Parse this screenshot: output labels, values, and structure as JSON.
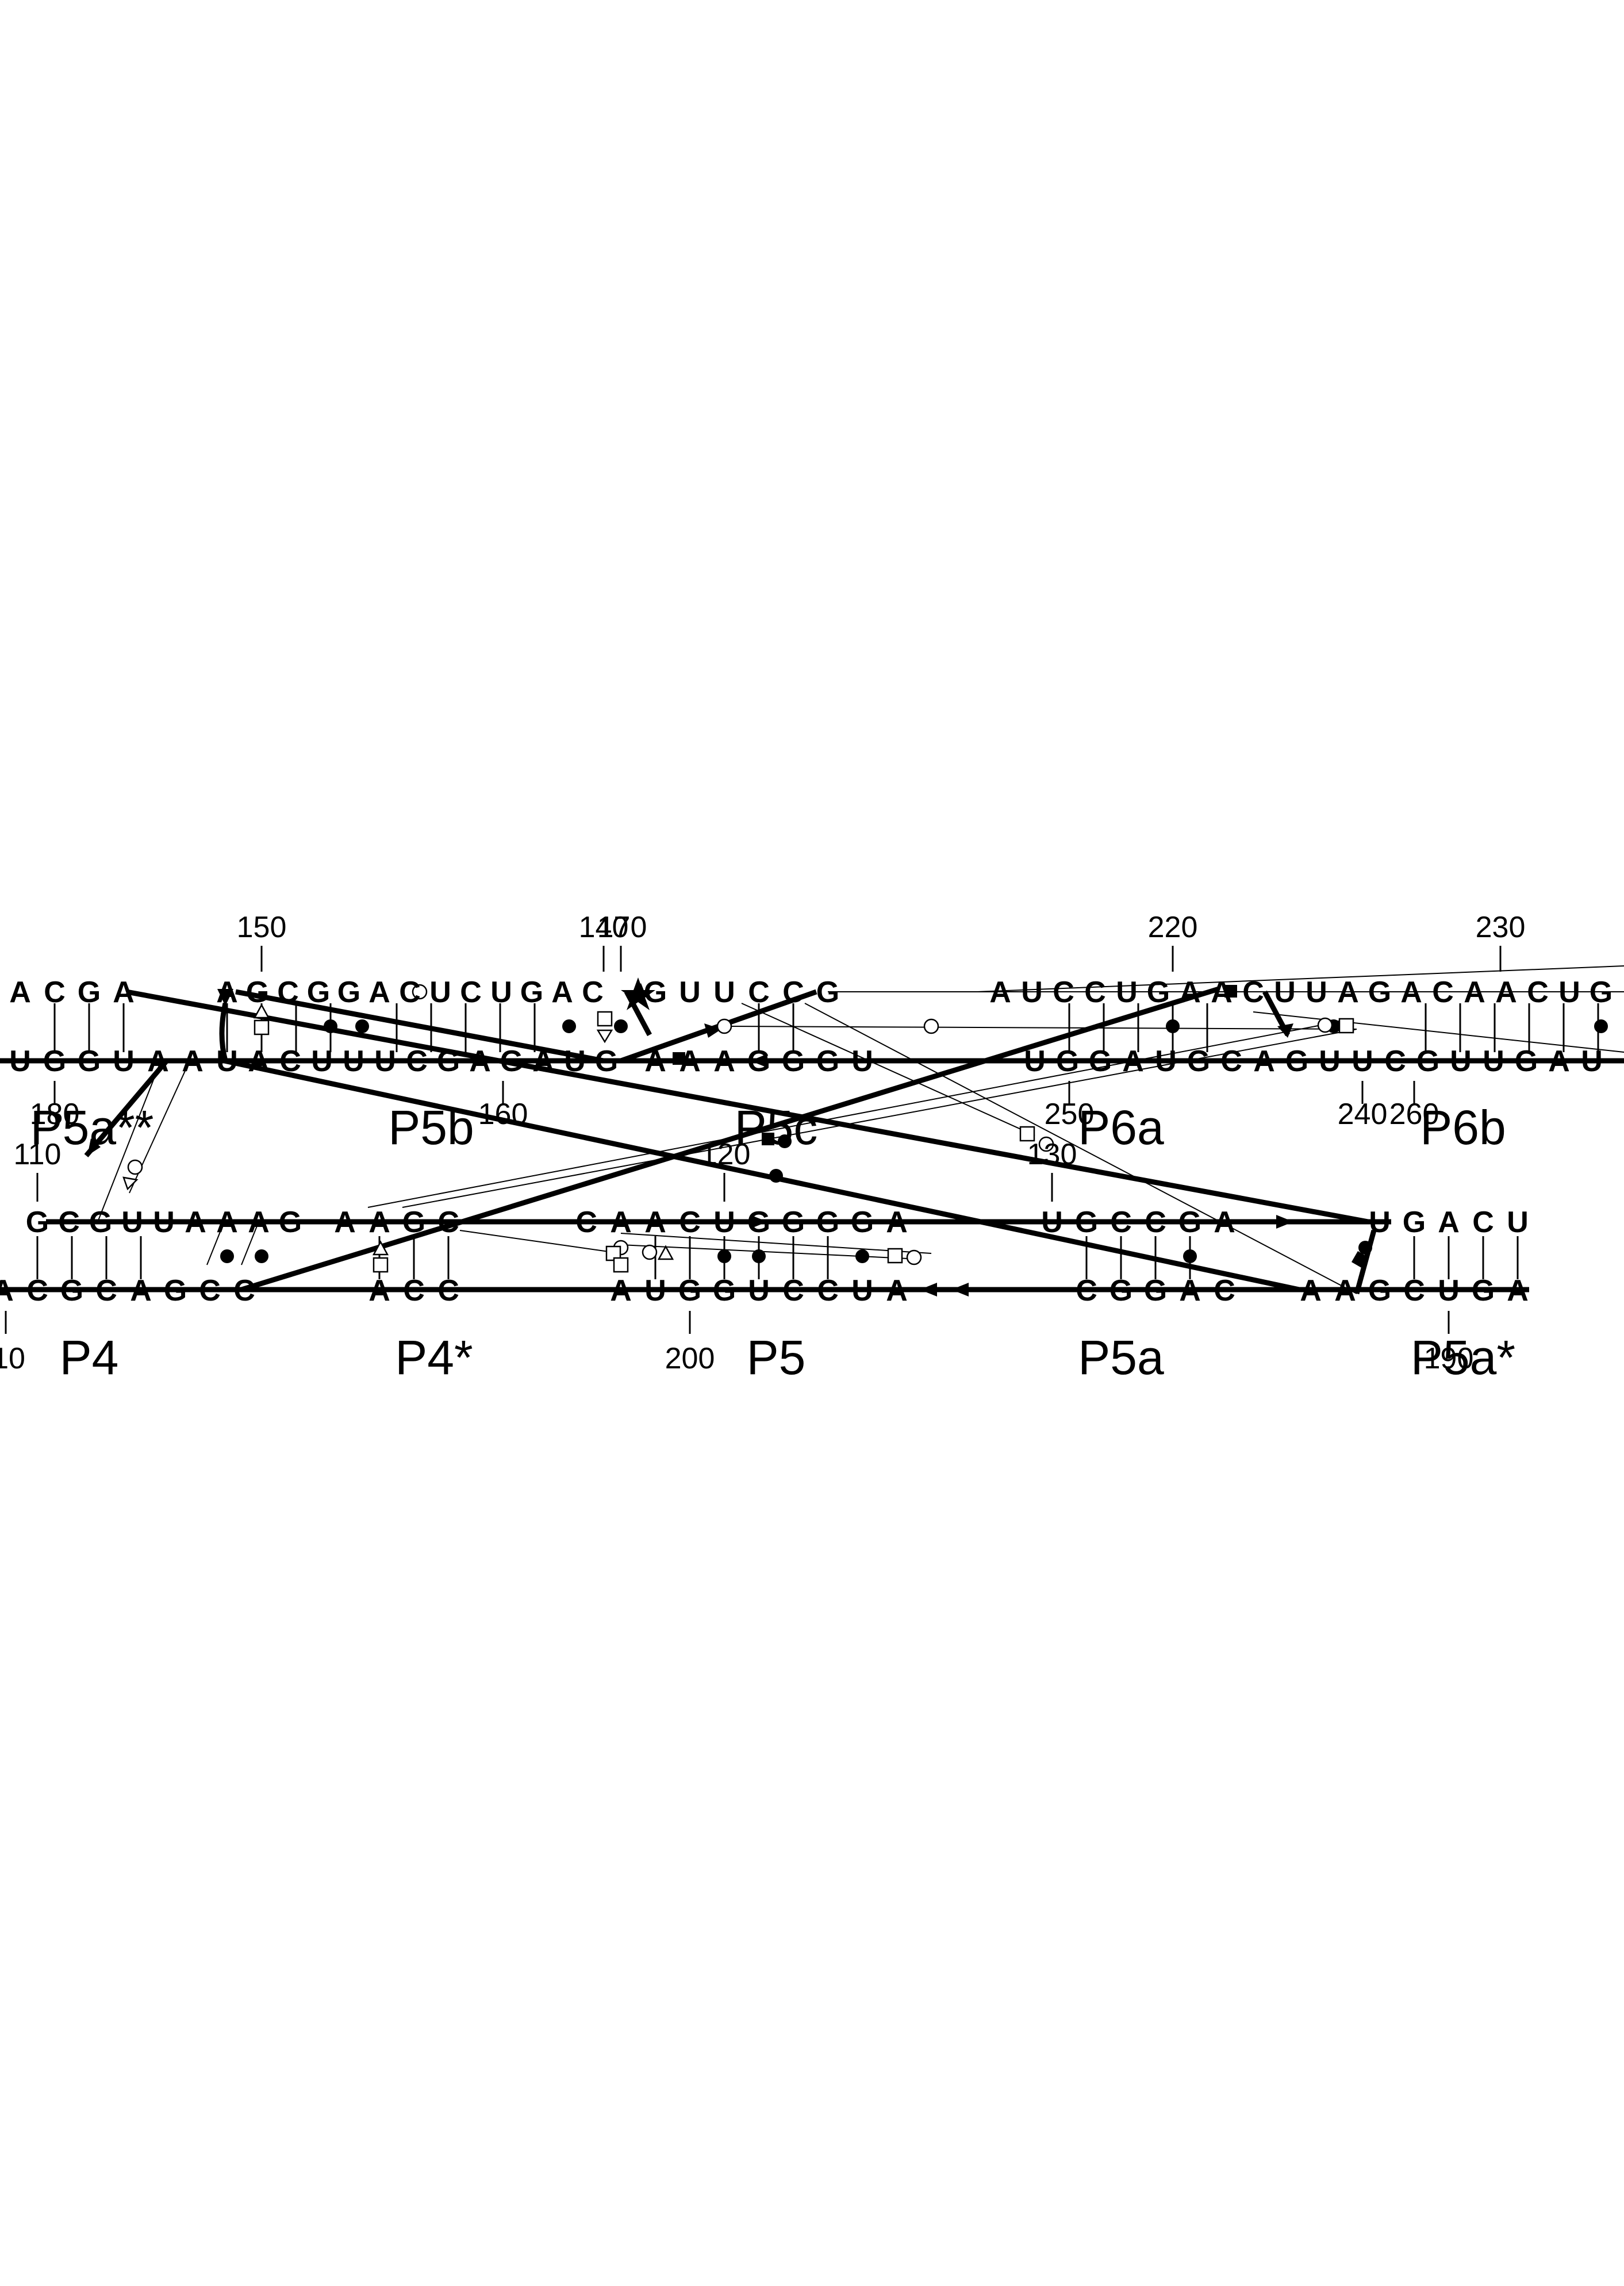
{
  "figure": {
    "kind": "RNA tertiary-interaction diagram (helix strands with base pairs)",
    "upper_block": {
      "strand_top": {
        "left_segment": "ACGA",
        "mid_segment": "AGCGGACUCUGAC",
        "right_segment": "GUUCCG",
        "p6_segment": "AUCCUGAACUUAGACAACUG"
      },
      "strand_bottom": {
        "left_segment": "UGGUAAU",
        "mid_segment": "ACUUUCGAGAUG",
        "right_segment": "AAAGGGU",
        "p6_segment": "UGGAUGCAGUUCGUUGAU"
      },
      "numbers": [
        {
          "id": "n150",
          "text": "150"
        },
        {
          "id": "n140",
          "text": "140"
        },
        {
          "id": "n170",
          "text": "170"
        },
        {
          "id": "n220",
          "text": "220"
        },
        {
          "id": "n230",
          "text": "230"
        },
        {
          "id": "n180",
          "text": "180"
        },
        {
          "id": "n160",
          "text": "160"
        },
        {
          "id": "n250",
          "text": "250"
        },
        {
          "id": "n240",
          "text": "240"
        },
        {
          "id": "n260",
          "text": "260"
        }
      ],
      "helix_labels": [
        "P5a**",
        "P5b",
        "P5c",
        "P6a",
        "P6b"
      ]
    },
    "lower_block": {
      "strand_top": {
        "left_segment": "GCGUUAAAG",
        "p4star_segment": "AAGC",
        "p5_segment": "CAACUGGGGA",
        "p5a_segment": "UGCCGA",
        "p5astar_segment": "UGACU"
      },
      "strand_bottom": {
        "left_segment": "ACGCAGCC",
        "p4star_segment": "ACC",
        "p5_segment": "AUGGUCCUA",
        "p5a_segment": "CGGAC",
        "p5astar_segment": "AAGCUGA"
      },
      "numbers": [
        {
          "id": "n110",
          "text": "110"
        },
        {
          "id": "n120",
          "text": "120"
        },
        {
          "id": "n130",
          "text": "130"
        },
        {
          "id": "n10",
          "text": "10"
        },
        {
          "id": "n200",
          "text": "200"
        },
        {
          "id": "n190",
          "text": "190"
        }
      ],
      "helix_labels": [
        "P4",
        "P4*",
        "P5",
        "P5a",
        "P5a*"
      ]
    },
    "colors": {
      "ink": "#000000",
      "paper": "#ffffff"
    }
  }
}
